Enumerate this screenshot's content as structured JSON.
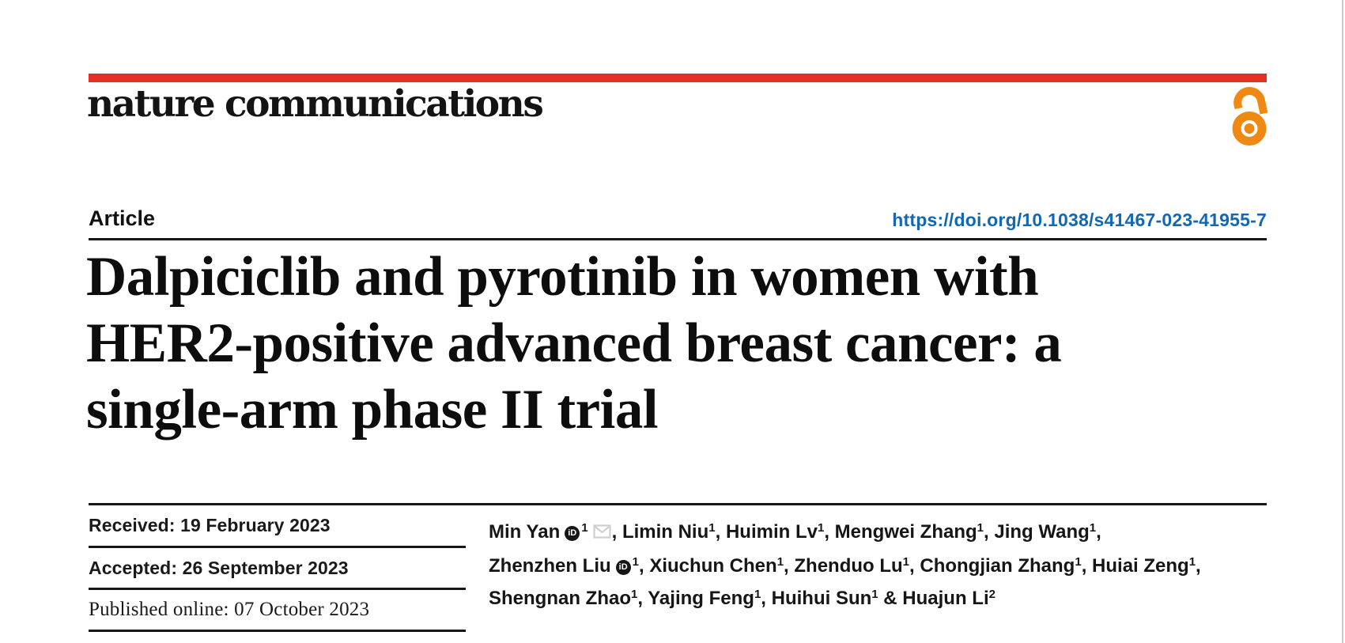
{
  "colors": {
    "brand_red": "#e33023",
    "link_blue": "#1268b3",
    "open_access_orange": "#ef8912",
    "envelope_gray": "#cfcfcf"
  },
  "brand": {
    "journal_name": "nature communications",
    "open_access_icon": "open-access-padlock"
  },
  "header": {
    "article_label": "Article",
    "doi": "https://doi.org/10.1038/s41467-023-41955-7"
  },
  "title_lines": [
    "Dalpiciclib and pyrotinib in women with",
    "HER2-positive advanced breast cancer: a",
    "single-arm phase II trial"
  ],
  "dates": {
    "rows": [
      {
        "label": "Received:",
        "value": "19 February 2023"
      },
      {
        "label": "Accepted:",
        "value": "26 September 2023"
      },
      {
        "label": "Published online:",
        "value": "07 October 2023"
      }
    ]
  },
  "authors": {
    "orcid_badge_text": "iD",
    "lines": [
      [
        {
          "name": "Min Yan",
          "orcid": true,
          "sup": "1",
          "email": true,
          "suf": ","
        },
        {
          "pre": " ",
          "name": "Limin Niu",
          "sup": "1",
          "suf": ","
        },
        {
          "pre": " ",
          "name": "Huimin Lv",
          "sup": "1",
          "suf": ","
        },
        {
          "pre": " ",
          "name": "Mengwei Zhang",
          "sup": "1",
          "suf": ","
        },
        {
          "pre": " ",
          "name": "Jing Wang",
          "sup": "1",
          "suf": ","
        }
      ],
      [
        {
          "name": "Zhenzhen Liu",
          "orcid": true,
          "sup": "1",
          "suf": ","
        },
        {
          "pre": " ",
          "name": "Xiuchun Chen",
          "sup": "1",
          "suf": ","
        },
        {
          "pre": " ",
          "name": "Zhenduo Lu",
          "sup": "1",
          "suf": ","
        },
        {
          "pre": " ",
          "name": "Chongjian Zhang",
          "sup": "1",
          "suf": ","
        },
        {
          "pre": " ",
          "name": "Huiai Zeng",
          "sup": "1",
          "suf": ","
        }
      ],
      [
        {
          "name": "Shengnan Zhao",
          "sup": "1",
          "suf": ","
        },
        {
          "pre": " ",
          "name": "Yajing Feng",
          "sup": "1",
          "suf": ","
        },
        {
          "pre": " ",
          "name": "Huihui Sun",
          "sup": "1",
          "suf": ""
        },
        {
          "pre": " & ",
          "name": "Huajun Li",
          "sup": "2",
          "suf": ""
        }
      ]
    ]
  }
}
